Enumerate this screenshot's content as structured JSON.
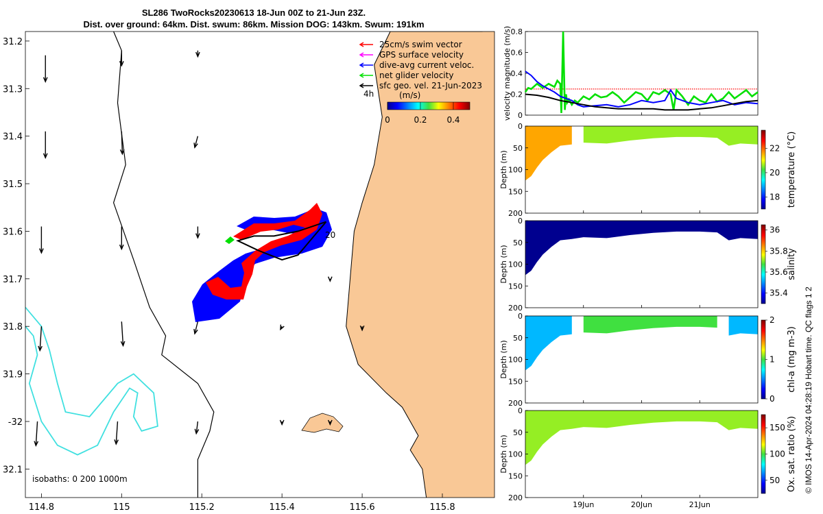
{
  "header": {
    "title_line1": "SL286 TwoRocks20230613 18-Jun 00Z to 21-Jun 23Z.",
    "title_line2": "Dist. over ground: 64km. Dist. swum: 86km. Mission DOG: 143km. Swum: 191km"
  },
  "credit": "© IMOS 14-Apr-2024 04:28:19 Hobart time. QC flags 1  2",
  "colors": {
    "land": "#f9c896",
    "coast": "#000000",
    "isobath_deep": "#40e0e0",
    "swim": "#ff0000",
    "gps": "#ff00ff",
    "current": "#0000ff",
    "net": "#00e000",
    "geo": "#000000",
    "threshold": "#ff0000"
  },
  "chart_data": [
    {
      "type": "map",
      "title": "SL286 TwoRocks20230613 18-Jun 00Z to 21-Jun 23Z.",
      "xlim": [
        114.76,
        115.93
      ],
      "ylim": [
        -32.16,
        -31.18
      ],
      "x_ticks": [
        114.8,
        115,
        115.2,
        115.4,
        115.6,
        115.8
      ],
      "x_tick_labels": [
        "114.8",
        "115",
        "115.2",
        "115.4",
        "115.6",
        "115.8"
      ],
      "y_ticks": [
        -31.2,
        -31.3,
        -31.4,
        -31.5,
        -31.6,
        -31.7,
        -31.8,
        -31.9,
        -32,
        -32.1
      ],
      "y_tick_labels": [
        "31.2",
        "31.3",
        "31.4",
        "31.5",
        "31.6",
        "31.7",
        "31.8",
        "31.9",
        "-32",
        "32.1"
      ],
      "legend": [
        {
          "label": "25cm/s swim vector",
          "color": "#ff0000"
        },
        {
          "label": "GPS surface velocity",
          "color": "#ff00ff"
        },
        {
          "label": "dive-avg current veloc.",
          "color": "#0000ff"
        },
        {
          "label": "net glider velocity",
          "color": "#00e000"
        },
        {
          "label": "sfc geo. vel. 21-Jun-2023",
          "color": "#000000"
        }
      ],
      "colorbar": {
        "label": "(m/s)",
        "ticks": [
          0,
          0.2,
          0.4
        ],
        "tick_labels": [
          "0",
          "0.2",
          "0.4"
        ],
        "range": [
          0,
          0.5
        ]
      },
      "time_label": "4h",
      "track_label": "20",
      "isobath_note": "isobaths: 0   200  1000m",
      "coastline": [
        [
          115.9,
          -31.18
        ],
        [
          115.67,
          -31.18
        ],
        [
          115.63,
          -31.25
        ],
        [
          115.65,
          -31.36
        ],
        [
          115.63,
          -31.46
        ],
        [
          115.6,
          -31.54
        ],
        [
          115.58,
          -31.6
        ],
        [
          115.57,
          -31.7
        ],
        [
          115.56,
          -31.8
        ],
        [
          115.59,
          -31.88
        ],
        [
          115.66,
          -31.94
        ],
        [
          115.7,
          -31.97
        ],
        [
          115.74,
          -32.03
        ],
        [
          115.72,
          -32.06
        ],
        [
          115.75,
          -32.1
        ],
        [
          115.76,
          -32.16
        ],
        [
          115.93,
          -32.16
        ],
        [
          115.93,
          -31.18
        ]
      ],
      "isobath_200": [
        [
          114.98,
          -31.18
        ],
        [
          115.0,
          -31.22
        ],
        [
          114.99,
          -31.33
        ],
        [
          115.01,
          -31.46
        ],
        [
          114.98,
          -31.54
        ],
        [
          115.03,
          -31.66
        ],
        [
          115.07,
          -31.76
        ],
        [
          115.11,
          -31.82
        ],
        [
          115.1,
          -31.86
        ],
        [
          115.19,
          -31.92
        ],
        [
          115.23,
          -31.98
        ],
        [
          115.22,
          -32.02
        ],
        [
          115.19,
          -32.08
        ],
        [
          115.19,
          -32.16
        ]
      ],
      "isobath_1000": [
        [
          114.76,
          -31.8
        ],
        [
          114.78,
          -31.82
        ],
        [
          114.79,
          -31.86
        ],
        [
          114.77,
          -31.92
        ],
        [
          114.8,
          -32.0
        ],
        [
          114.84,
          -32.05
        ],
        [
          114.89,
          -32.07
        ],
        [
          114.94,
          -32.05
        ],
        [
          114.98,
          -31.98
        ],
        [
          115.02,
          -31.93
        ],
        [
          115.04,
          -31.94
        ],
        [
          115.03,
          -31.99
        ],
        [
          115.05,
          -32.02
        ],
        [
          115.09,
          -32.01
        ],
        [
          115.08,
          -31.94
        ],
        [
          115.03,
          -31.9
        ],
        [
          114.99,
          -31.92
        ],
        [
          114.92,
          -31.99
        ],
        [
          114.86,
          -31.98
        ],
        [
          114.84,
          -31.92
        ],
        [
          114.82,
          -31.85
        ],
        [
          114.8,
          -31.8
        ],
        [
          114.76,
          -31.76
        ]
      ],
      "glider_track": [
        [
          115.51,
          -31.58
        ],
        [
          115.44,
          -31.6
        ],
        [
          115.38,
          -31.61
        ],
        [
          115.33,
          -31.61
        ],
        [
          115.29,
          -31.62
        ],
        [
          115.34,
          -31.64
        ],
        [
          115.4,
          -31.66
        ],
        [
          115.44,
          -31.65
        ],
        [
          115.48,
          -31.61
        ],
        [
          115.51,
          -31.58
        ]
      ],
      "geo_vectors": [
        {
          "lon": 114.81,
          "lat": -31.23,
          "u": 0.0,
          "v": -0.35
        },
        {
          "lon": 115.0,
          "lat": -31.22,
          "u": 0.0,
          "v": -0.2
        },
        {
          "lon": 115.19,
          "lat": -31.22,
          "u": 0.0,
          "v": -0.08
        },
        {
          "lon": 114.81,
          "lat": -31.39,
          "u": 0.0,
          "v": -0.35
        },
        {
          "lon": 115.0,
          "lat": -31.39,
          "u": 0.01,
          "v": -0.3
        },
        {
          "lon": 115.19,
          "lat": -31.4,
          "u": -0.04,
          "v": -0.15
        },
        {
          "lon": 114.8,
          "lat": -31.59,
          "u": 0.0,
          "v": -0.35
        },
        {
          "lon": 115.0,
          "lat": -31.59,
          "u": 0.0,
          "v": -0.3
        },
        {
          "lon": 115.19,
          "lat": -31.59,
          "u": 0.0,
          "v": -0.15
        },
        {
          "lon": 114.8,
          "lat": -31.8,
          "u": -0.02,
          "v": -0.32
        },
        {
          "lon": 115.0,
          "lat": -31.79,
          "u": 0.02,
          "v": -0.32
        },
        {
          "lon": 115.19,
          "lat": -31.79,
          "u": -0.04,
          "v": -0.16
        },
        {
          "lon": 114.79,
          "lat": -32.0,
          "u": -0.02,
          "v": -0.32
        },
        {
          "lon": 114.99,
          "lat": -32.0,
          "u": -0.02,
          "v": -0.3
        },
        {
          "lon": 115.19,
          "lat": -32.0,
          "u": -0.02,
          "v": -0.16
        },
        {
          "lon": 115.4,
          "lat": -31.8,
          "u": -0.02,
          "v": -0.04
        },
        {
          "lon": 115.6,
          "lat": -31.8,
          "u": 0.0,
          "v": -0.05
        },
        {
          "lon": 115.4,
          "lat": -32.0,
          "u": 0.0,
          "v": -0.04
        },
        {
          "lon": 115.52,
          "lat": -32.0,
          "u": 0.0,
          "v": -0.04
        },
        {
          "lon": 115.52,
          "lat": -31.7,
          "u": 0.0,
          "v": -0.03
        }
      ]
    },
    {
      "type": "line",
      "ylabel": "velocity magnitude (m/s)",
      "ylim": [
        0,
        0.8
      ],
      "y_ticks": [
        0,
        0.2,
        0.4,
        0.6,
        0.8
      ],
      "x_domain_days": [
        0,
        4
      ],
      "threshold": 0.25,
      "series": [
        {
          "name": "net glider velocity",
          "color": "#00e000",
          "t": [
            0,
            0.05,
            0.1,
            0.2,
            0.3,
            0.4,
            0.5,
            0.55,
            0.6,
            0.62,
            0.65,
            0.68,
            0.7,
            0.72,
            0.75,
            0.8,
            0.85,
            0.9,
            1.0,
            1.1,
            1.2,
            1.3,
            1.4,
            1.5,
            1.6,
            1.7,
            1.8,
            1.9,
            2.0,
            2.1,
            2.2,
            2.3,
            2.4,
            2.5,
            2.55,
            2.6,
            2.7,
            2.8,
            2.9,
            3.0,
            3.1,
            3.2,
            3.3,
            3.4,
            3.5,
            3.6,
            3.7,
            3.8,
            3.9,
            4.0
          ],
          "v": [
            0.22,
            0.26,
            0.25,
            0.3,
            0.26,
            0.3,
            0.27,
            0.33,
            0.3,
            0.02,
            0.8,
            0.05,
            0.2,
            0.12,
            0.15,
            0.1,
            0.14,
            0.12,
            0.18,
            0.15,
            0.2,
            0.17,
            0.18,
            0.22,
            0.18,
            0.12,
            0.17,
            0.22,
            0.2,
            0.14,
            0.22,
            0.2,
            0.24,
            0.2,
            0.05,
            0.24,
            0.18,
            0.1,
            0.18,
            0.14,
            0.12,
            0.2,
            0.13,
            0.16,
            0.22,
            0.16,
            0.2,
            0.24,
            0.18,
            0.22
          ]
        },
        {
          "name": "dive-avg current veloc.",
          "color": "#0000ff",
          "t": [
            0,
            0.1,
            0.2,
            0.3,
            0.4,
            0.5,
            0.6,
            0.7,
            0.8,
            0.9,
            1.0,
            1.2,
            1.4,
            1.6,
            1.8,
            2.0,
            2.2,
            2.4,
            2.5,
            2.6,
            2.8,
            3.0,
            3.2,
            3.4,
            3.6,
            3.8,
            4.0
          ],
          "v": [
            0.42,
            0.38,
            0.32,
            0.28,
            0.25,
            0.22,
            0.18,
            0.16,
            0.14,
            0.1,
            0.08,
            0.09,
            0.1,
            0.08,
            0.1,
            0.14,
            0.12,
            0.14,
            0.24,
            0.16,
            0.12,
            0.1,
            0.12,
            0.14,
            0.1,
            0.12,
            0.11
          ]
        },
        {
          "name": "sfc geo. vel.",
          "color": "#000000",
          "t": [
            0,
            0.2,
            0.4,
            0.6,
            0.8,
            1.0,
            1.2,
            1.4,
            1.6,
            1.8,
            2.0,
            2.2,
            2.4,
            2.6,
            2.8,
            3.0,
            3.2,
            3.4,
            3.6,
            3.8,
            4.0
          ],
          "v": [
            0.2,
            0.19,
            0.17,
            0.14,
            0.12,
            0.1,
            0.08,
            0.07,
            0.06,
            0.06,
            0.06,
            0.06,
            0.05,
            0.05,
            0.05,
            0.06,
            0.07,
            0.09,
            0.11,
            0.13,
            0.14
          ]
        }
      ]
    },
    {
      "type": "heatmap",
      "variable": "temperature (°C)",
      "ylabel": "Depth (m)",
      "ylim": [
        200,
        0
      ],
      "y_ticks": [
        0,
        50,
        100,
        150,
        200
      ],
      "colorbar_ticks": [
        18,
        20,
        22
      ],
      "colorbar_range": [
        17,
        23.5
      ],
      "profile_depth_m": [
        [
          0,
          125
        ],
        [
          0.1,
          115
        ],
        [
          0.2,
          95
        ],
        [
          0.3,
          78
        ],
        [
          0.45,
          60
        ],
        [
          0.6,
          45
        ],
        [
          0.8,
          42
        ],
        [
          1.0,
          38
        ],
        [
          1.4,
          40
        ],
        [
          1.8,
          33
        ],
        [
          2.2,
          28
        ],
        [
          2.6,
          25
        ],
        [
          3.0,
          25
        ],
        [
          3.3,
          27
        ],
        [
          3.5,
          45
        ],
        [
          3.7,
          40
        ],
        [
          4.0,
          42
        ]
      ],
      "regions": [
        {
          "t": [
            0,
            0.9
          ],
          "value": 21.6
        },
        {
          "t": [
            0.9,
            4.0
          ],
          "value": 20.6
        }
      ]
    },
    {
      "type": "heatmap",
      "variable": "salinity",
      "ylabel": "Depth (m)",
      "ylim": [
        200,
        0
      ],
      "y_ticks": [
        0,
        50,
        100,
        150,
        200
      ],
      "colorbar_ticks": [
        35.4,
        35.6,
        35.8,
        36
      ],
      "colorbar_range": [
        35.3,
        36.05
      ],
      "profile_depth_m": [
        [
          0,
          125
        ],
        [
          0.1,
          115
        ],
        [
          0.2,
          95
        ],
        [
          0.3,
          78
        ],
        [
          0.45,
          60
        ],
        [
          0.6,
          45
        ],
        [
          0.8,
          42
        ],
        [
          1.0,
          38
        ],
        [
          1.4,
          40
        ],
        [
          1.8,
          33
        ],
        [
          2.2,
          28
        ],
        [
          2.6,
          25
        ],
        [
          3.0,
          25
        ],
        [
          3.3,
          27
        ],
        [
          3.5,
          45
        ],
        [
          3.7,
          40
        ],
        [
          4.0,
          42
        ]
      ],
      "regions": [
        {
          "t": [
            0,
            4.0
          ],
          "value": 35.3
        }
      ]
    },
    {
      "type": "heatmap",
      "variable": "chl-a (mg m-3)",
      "ylabel": "Depth (m)",
      "ylim": [
        200,
        0
      ],
      "y_ticks": [
        0,
        50,
        100,
        150,
        200
      ],
      "colorbar_ticks": [
        0,
        1,
        2
      ],
      "colorbar_range": [
        0,
        2
      ],
      "profile_depth_m": [
        [
          0,
          125
        ],
        [
          0.1,
          115
        ],
        [
          0.2,
          95
        ],
        [
          0.3,
          78
        ],
        [
          0.45,
          60
        ],
        [
          0.6,
          45
        ],
        [
          0.8,
          42
        ],
        [
          1.0,
          38
        ],
        [
          1.4,
          40
        ],
        [
          1.8,
          33
        ],
        [
          2.2,
          28
        ],
        [
          2.6,
          25
        ],
        [
          3.0,
          25
        ],
        [
          3.3,
          27
        ],
        [
          3.5,
          45
        ],
        [
          3.7,
          40
        ],
        [
          4.0,
          42
        ]
      ],
      "regions": [
        {
          "t": [
            0,
            0.9
          ],
          "value": 0.6
        },
        {
          "t": [
            0.9,
            3.4
          ],
          "value": 1.0
        },
        {
          "t": [
            3.4,
            4.0
          ],
          "value": 0.6
        }
      ]
    },
    {
      "type": "heatmap",
      "variable": "Ox. sat. ratio (%)",
      "ylabel": "Depth (m)",
      "ylim": [
        200,
        0
      ],
      "y_ticks": [
        0,
        50,
        100,
        150,
        200
      ],
      "colorbar_ticks": [
        50,
        100,
        150
      ],
      "colorbar_range": [
        25,
        175
      ],
      "profile_depth_m": [
        [
          0,
          125
        ],
        [
          0.1,
          115
        ],
        [
          0.2,
          95
        ],
        [
          0.3,
          78
        ],
        [
          0.45,
          60
        ],
        [
          0.6,
          45
        ],
        [
          0.8,
          42
        ],
        [
          1.0,
          38
        ],
        [
          1.4,
          40
        ],
        [
          1.8,
          33
        ],
        [
          2.2,
          28
        ],
        [
          2.6,
          25
        ],
        [
          3.0,
          25
        ],
        [
          3.3,
          27
        ],
        [
          3.5,
          45
        ],
        [
          3.7,
          40
        ],
        [
          4.0,
          42
        ]
      ],
      "regions": [
        {
          "t": [
            0,
            4.0
          ],
          "value": 108
        }
      ]
    }
  ],
  "time_axis": {
    "ticks_days": [
      1,
      2,
      3
    ],
    "tick_labels": [
      "19Jun",
      "20Jun",
      "21Jun"
    ]
  }
}
